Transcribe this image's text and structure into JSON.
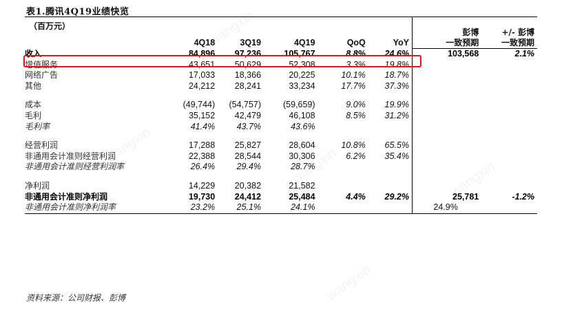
{
  "title": "表1.腾讯4Q19业绩快览",
  "header": {
    "unit": "（百万元）",
    "periods": [
      "4Q18",
      "3Q19",
      "4Q19",
      "QoQ",
      "YoY"
    ],
    "consensus_line1": "彭博",
    "consensus_line2": "一致预期",
    "diff_line1": "+/- 彭博",
    "diff_line2": "一致预期"
  },
  "rows": [
    {
      "label": "收入",
      "q4_18": "84,896",
      "q3_19": "97,236",
      "q4_19": "105,767",
      "qoq": "8.8%",
      "yoy": "24.6%",
      "consensus": "103,568",
      "diff": "2.1%"
    },
    {
      "label": "增值服务",
      "q4_18": "43,651",
      "q3_19": "50,629",
      "q4_19": "52,308",
      "qoq": "3.3%",
      "yoy": "19.8%",
      "consensus": "",
      "diff": ""
    },
    {
      "label": "网络广告",
      "q4_18": "17,033",
      "q3_19": "18,366",
      "q4_19": "20,225",
      "qoq": "10.1%",
      "yoy": "18.7%",
      "consensus": "",
      "diff": ""
    },
    {
      "label": "其他",
      "q4_18": "24,212",
      "q3_19": "28,241",
      "q4_19": "33,234",
      "qoq": "17.7%",
      "yoy": "37.3%",
      "consensus": "",
      "diff": ""
    },
    {
      "label": "成本",
      "q4_18": "(49,744)",
      "q3_19": "(54,757)",
      "q4_19": "(59,659)",
      "qoq": "9.0%",
      "yoy": "19.9%",
      "consensus": "",
      "diff": ""
    },
    {
      "label": "毛利",
      "q4_18": "35,152",
      "q3_19": "42,479",
      "q4_19": "46,108",
      "qoq": "8.5%",
      "yoy": "31.2%",
      "consensus": "",
      "diff": ""
    },
    {
      "label": "毛利率",
      "q4_18": "41.4%",
      "q3_19": "43.7%",
      "q4_19": "43.6%",
      "qoq": "",
      "yoy": "",
      "consensus": "",
      "diff": ""
    },
    {
      "label": "经营利润",
      "q4_18": "17,288",
      "q3_19": "25,827",
      "q4_19": "28,604",
      "qoq": "10.8%",
      "yoy": "65.5%",
      "consensus": "",
      "diff": ""
    },
    {
      "label": "非通用会计准则经营利润",
      "q4_18": "22,388",
      "q3_19": "28,544",
      "q4_19": "30,306",
      "qoq": "6.2%",
      "yoy": "35.4%",
      "consensus": "",
      "diff": ""
    },
    {
      "label": "非通用会计准则经营利润率",
      "q4_18": "26.4%",
      "q3_19": "29.4%",
      "q4_19": "28.7%",
      "qoq": "",
      "yoy": "",
      "consensus": "",
      "diff": ""
    },
    {
      "label": "净利润",
      "q4_18": "14,229",
      "q3_19": "20,382",
      "q4_19": "21,582",
      "qoq": "",
      "yoy": "",
      "consensus": "",
      "diff": ""
    },
    {
      "label": "非通用会计准则净利润",
      "q4_18": "19,730",
      "q3_19": "24,412",
      "q4_19": "25,484",
      "qoq": "4.4%",
      "yoy": "29.2%",
      "consensus": "25,781",
      "diff": "-1.2%"
    },
    {
      "label": "非通用会计准则净利润率",
      "q4_18": "23.2%",
      "q3_19": "25.1%",
      "q4_19": "24.1%",
      "qoq": "",
      "yoy": "",
      "consensus": "24.9%",
      "diff": ""
    }
  ],
  "source": "资料来源：公司财报、彭博",
  "colors": {
    "highlight": "#e0121a"
  }
}
